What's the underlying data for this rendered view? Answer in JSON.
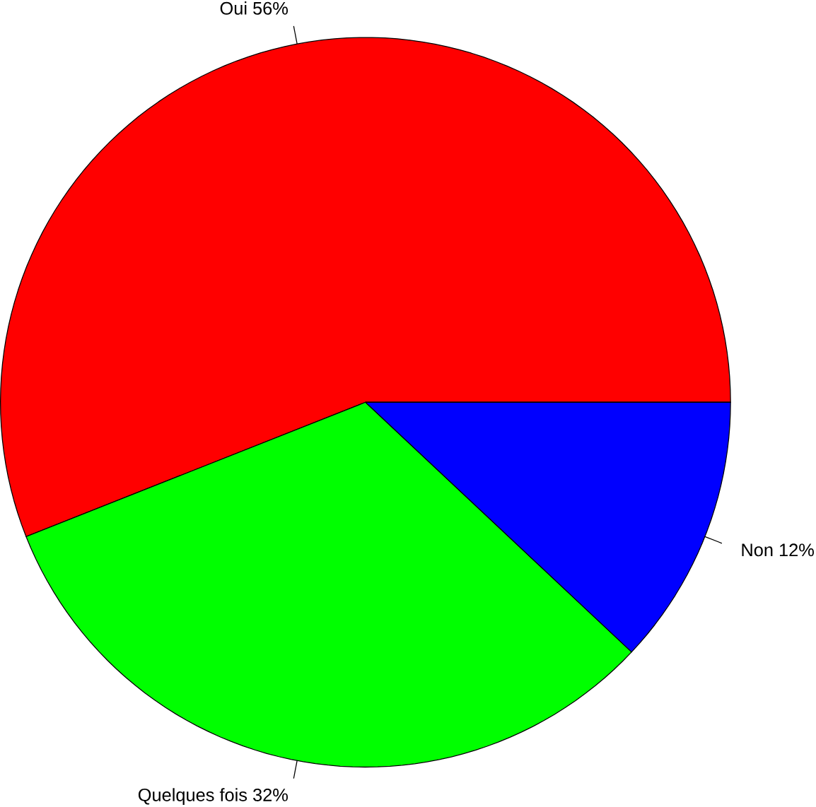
{
  "chart_data": {
    "type": "pie",
    "categories": [
      "Oui 56%",
      "Quelques fois 32%",
      "Non 12%"
    ],
    "values": [
      56,
      32,
      12
    ],
    "colors": [
      "#ff0000",
      "#00ff00",
      "#0000ff"
    ]
  }
}
